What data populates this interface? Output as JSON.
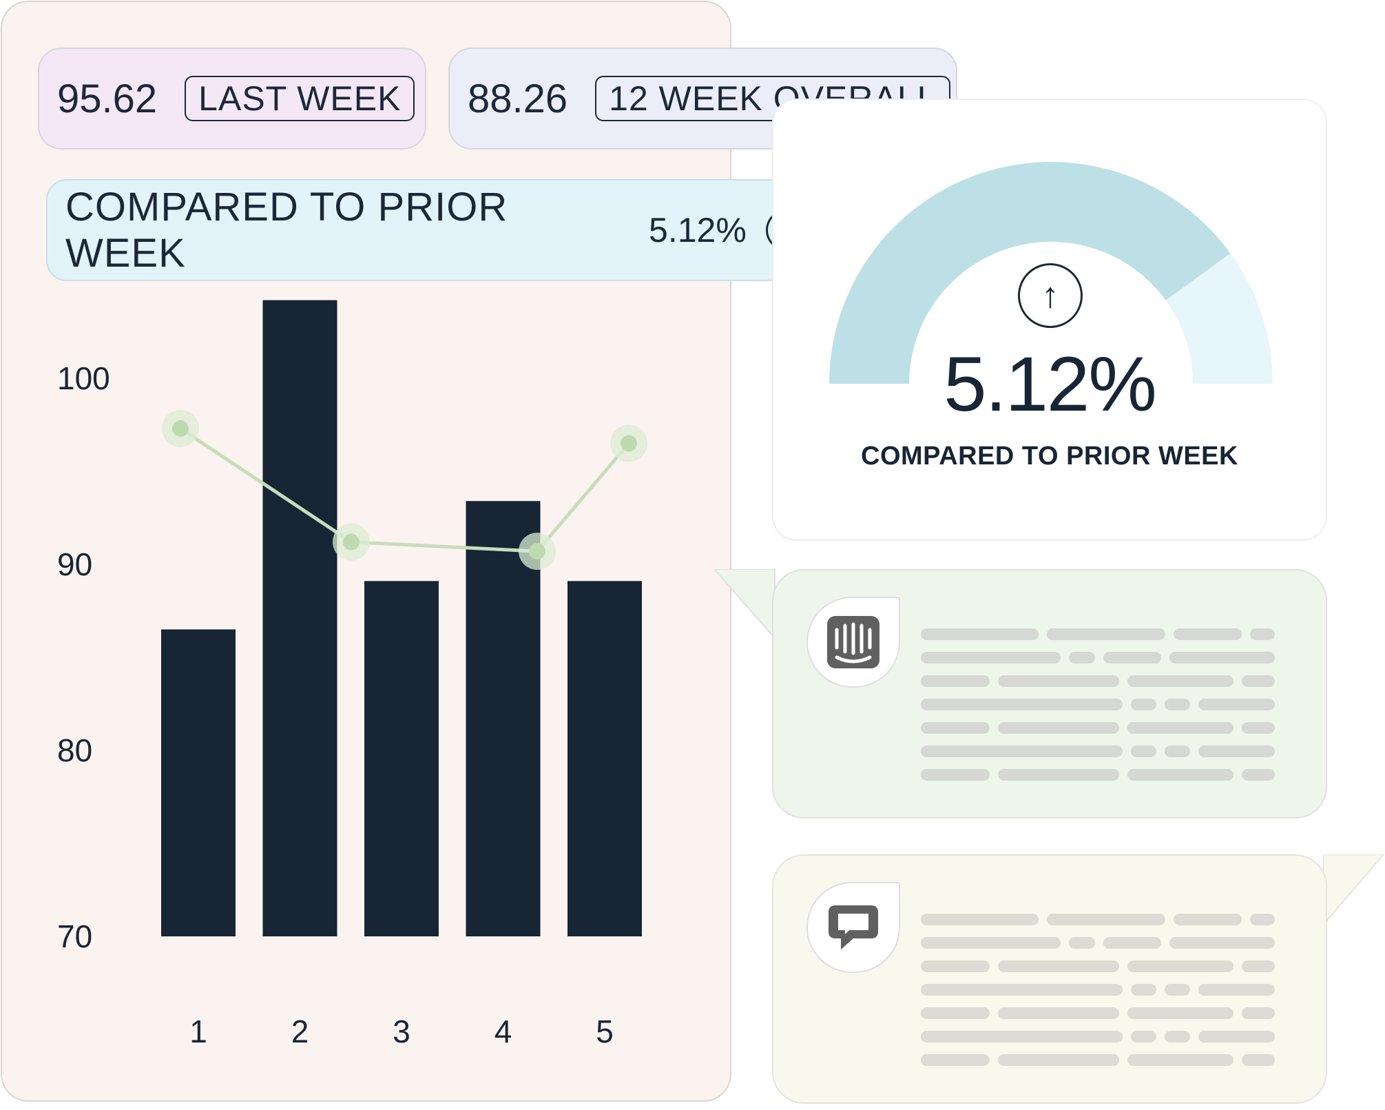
{
  "stats": {
    "last_week": {
      "value": "95.62",
      "tag": "LAST WEEK"
    },
    "overall": {
      "value": "88.26",
      "tag": "12 WEEK OVERALL"
    }
  },
  "comparison": {
    "label": "COMPARED TO PRIOR WEEK",
    "value": "5.12%",
    "icon": "arrow-up-circle-icon"
  },
  "gauge": {
    "value": "5.12%",
    "caption": "COMPARED TO PRIOR WEEK",
    "icon": "arrow-up-circle-icon",
    "fill_fraction": 0.8,
    "colors": {
      "filled": "#bde0e6",
      "remaining": "#e6f6fa"
    }
  },
  "chart_data": {
    "type": "bar",
    "categories": [
      "1",
      "2",
      "3",
      "4",
      "5"
    ],
    "y_ticks": [
      "100",
      "90",
      "80",
      "70"
    ],
    "ylim": [
      70,
      105
    ],
    "series": [
      {
        "type": "bar",
        "values": [
          86.5,
          104.2,
          89.1,
          93.4,
          89.1
        ],
        "color": "#172535"
      },
      {
        "type": "line",
        "values": [
          97.3,
          91.2,
          90.9,
          90.7,
          96.5
        ],
        "color": "#c8dcbc"
      }
    ],
    "grid": false
  },
  "chats": [
    {
      "icon": "intercom-logo-icon",
      "background": "#eef5ea"
    },
    {
      "icon": "livechat-logo-icon",
      "background": "#f8f8ed"
    }
  ],
  "colors": {
    "panel_bg": "#fbf3ef",
    "ink": "#172535",
    "line_series": "#c8dcbc"
  }
}
